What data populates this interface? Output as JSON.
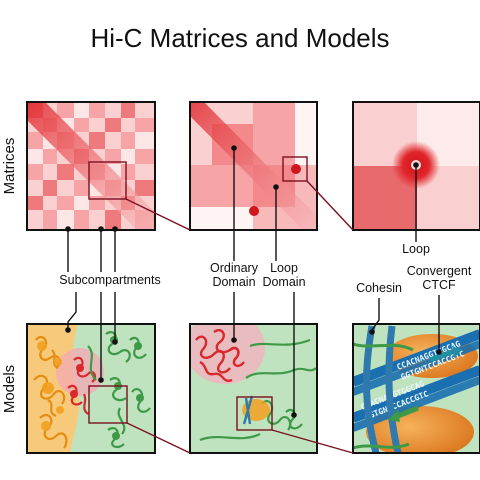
{
  "title": "Hi-C Matrices and Models",
  "row_labels": {
    "matrices": "Matrices",
    "models": "Models"
  },
  "callouts": {
    "subcompartments": "Subcompartments",
    "ordinary_domain_line1": "Ordinary",
    "ordinary_domain_line2": "Domain",
    "loop_domain_line1": "Loop",
    "loop_domain_line2": "Domain",
    "loop": "Loop",
    "cohesin": "Cohesin",
    "convergent_line1": "Convergent",
    "convergent_line2": "CTCF"
  },
  "motifs": {
    "motif_a": "CCACNAGGTGGCAG",
    "motif_a_rev": "GGTGNTCCACCGTC",
    "motif_b": "CCACNAGGTGGCAG",
    "motif_b_rev": "GGTGNTCCACCGTC"
  },
  "colors": {
    "heat_strong": "#e0262b",
    "heat_light": "#fbd5d5",
    "compartment_a": "#f7c97a",
    "compartment_b": "#bfe3bf",
    "chromatin_red": "#d82a2e",
    "chromatin_green": "#3f9a48",
    "chromatin_orange": "#f2a020",
    "cohesin_blue": "#2f79ad",
    "zoom_line": "#7a1020"
  }
}
